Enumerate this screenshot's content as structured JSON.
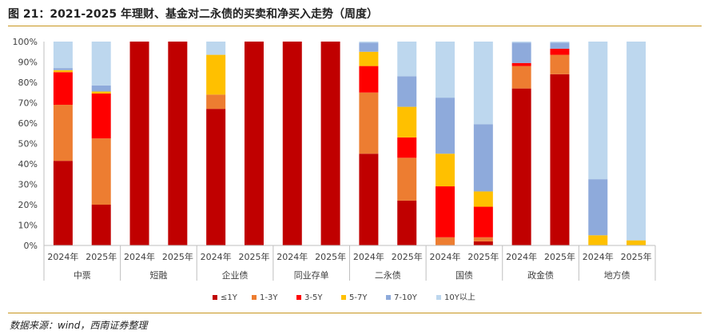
{
  "title": "图 21：2021-2025 年理财、基金对二永债的买卖和净买入走势（周度）",
  "source": "数据来源：wind，西南证券整理",
  "colors": {
    "accent_line": "#c8961e",
    "series": [
      "#c00000",
      "#ed7d31",
      "#ff0000",
      "#ffc000",
      "#8eaadb",
      "#bdd7ee"
    ]
  },
  "chart_data": {
    "type": "bar",
    "stacked": true,
    "title": "",
    "xlabel": "",
    "ylabel": "",
    "ylim": [
      0,
      100
    ],
    "yticks": [
      0,
      10,
      20,
      30,
      40,
      50,
      60,
      70,
      80,
      90,
      100
    ],
    "ytick_labels": [
      "0%",
      "10%",
      "20%",
      "30%",
      "40%",
      "50%",
      "60%",
      "70%",
      "80%",
      "90%",
      "100%"
    ],
    "groups": [
      "中票",
      "短融",
      "企业债",
      "同业存单",
      "二永债",
      "国债",
      "政金债",
      "地方债"
    ],
    "categories": [
      "2024年",
      "2025年",
      "2024年",
      "2025年",
      "2024年",
      "2025年",
      "2024年",
      "2025年",
      "2024年",
      "2025年",
      "2024年",
      "2025年",
      "2024年",
      "2025年",
      "2024年",
      "2025年"
    ],
    "legend_position": "bottom",
    "series": [
      {
        "name": "≤1Y",
        "values": [
          41.5,
          20,
          100,
          100,
          67,
          100,
          100,
          100,
          45,
          22,
          0,
          2,
          77,
          84,
          0,
          0
        ]
      },
      {
        "name": "1-3Y",
        "values": [
          27.5,
          32.5,
          0,
          0,
          7,
          0,
          0,
          0,
          30,
          21,
          4,
          2,
          11,
          9.5,
          0,
          0
        ]
      },
      {
        "name": "3-5Y",
        "values": [
          16,
          22,
          0,
          0,
          0,
          0,
          0,
          0,
          13,
          10,
          25,
          15,
          1.5,
          3,
          0,
          0
        ]
      },
      {
        "name": "5-7Y",
        "values": [
          1,
          1,
          0,
          0,
          19.5,
          0,
          0,
          0,
          7,
          15,
          16,
          7.5,
          0,
          0,
          5,
          2.5
        ]
      },
      {
        "name": "7-10Y",
        "values": [
          1,
          3,
          0,
          0,
          0,
          0,
          0,
          0,
          4.5,
          15,
          27.5,
          33,
          10,
          3,
          27.5,
          0
        ]
      },
      {
        "name": "10Y以上",
        "values": [
          13,
          21.5,
          0,
          0,
          6.5,
          0,
          0,
          0,
          0.5,
          17,
          27.5,
          40.5,
          0.5,
          0.5,
          67.5,
          97.5
        ]
      }
    ]
  }
}
